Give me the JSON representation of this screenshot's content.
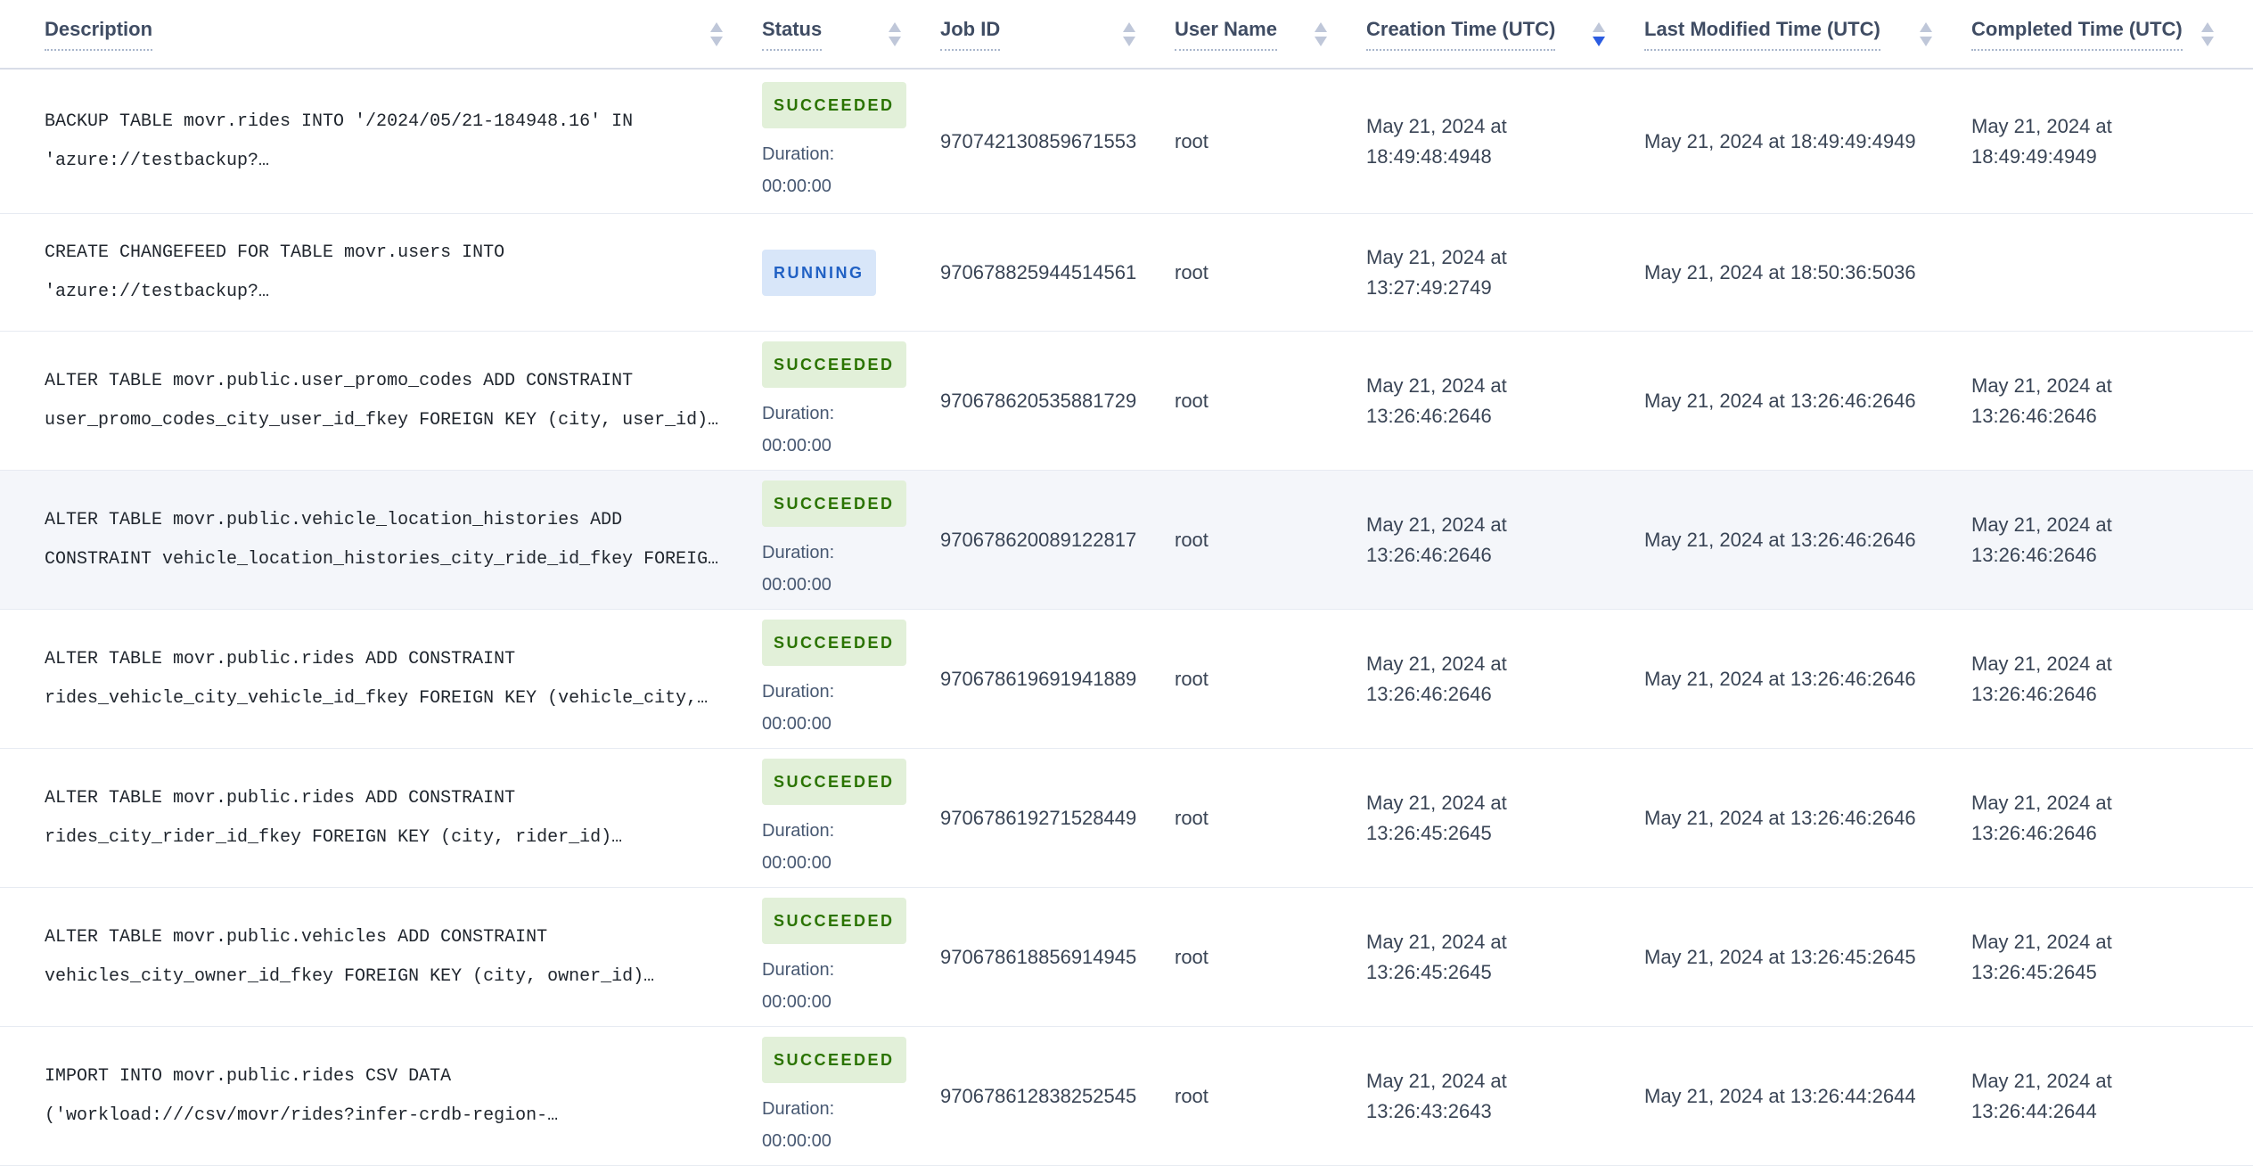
{
  "colors": {
    "succeeded_bg": "#e2f0d9",
    "succeeded_text": "#2a7300",
    "running_bg": "#d8e6f9",
    "running_text": "#2161c4",
    "sort_active": "#2b5ce1",
    "highlight_row_bg": "#f4f6fa"
  },
  "table": {
    "columns": [
      {
        "label": "Description",
        "sort": "none"
      },
      {
        "label": "Status",
        "sort": "none"
      },
      {
        "label": "Job ID",
        "sort": "none"
      },
      {
        "label": "User Name",
        "sort": "none"
      },
      {
        "label": "Creation Time (UTC)",
        "sort": "desc"
      },
      {
        "label": "Last Modified Time (UTC)",
        "sort": "none"
      },
      {
        "label": "Completed Time (UTC)",
        "sort": "none"
      }
    ],
    "rows": [
      {
        "description": "BACKUP TABLE movr.rides INTO '/2024/05/21-184948.16' IN\n'azure://testbackup?…",
        "status": "SUCCEEDED",
        "duration_label": "Duration:",
        "duration": "00:00:00",
        "job_id": "970742130859671553",
        "user_name": "root",
        "creation_time": "May 21, 2024 at 18:49:48:4948",
        "last_modified_time": "May 21, 2024 at 18:49:49:4949",
        "completed_time": "May 21, 2024 at 18:49:49:4949",
        "highlighted": false
      },
      {
        "description": "CREATE CHANGEFEED FOR TABLE movr.users INTO\n'azure://testbackup?…",
        "status": "RUNNING",
        "duration_label": "",
        "duration": "",
        "job_id": "970678825944514561",
        "user_name": "root",
        "creation_time": "May 21, 2024 at 13:27:49:2749",
        "last_modified_time": "May 21, 2024 at 18:50:36:5036",
        "completed_time": "",
        "highlighted": false
      },
      {
        "description": "ALTER TABLE movr.public.user_promo_codes ADD CONSTRAINT\nuser_promo_codes_city_user_id_fkey FOREIGN KEY (city, user_id)…",
        "status": "SUCCEEDED",
        "duration_label": "Duration:",
        "duration": "00:00:00",
        "job_id": "970678620535881729",
        "user_name": "root",
        "creation_time": "May 21, 2024 at 13:26:46:2646",
        "last_modified_time": "May 21, 2024 at 13:26:46:2646",
        "completed_time": "May 21, 2024 at 13:26:46:2646",
        "highlighted": false
      },
      {
        "description": "ALTER TABLE movr.public.vehicle_location_histories ADD\nCONSTRAINT vehicle_location_histories_city_ride_id_fkey FOREIG…",
        "status": "SUCCEEDED",
        "duration_label": "Duration:",
        "duration": "00:00:00",
        "job_id": "970678620089122817",
        "user_name": "root",
        "creation_time": "May 21, 2024 at 13:26:46:2646",
        "last_modified_time": "May 21, 2024 at 13:26:46:2646",
        "completed_time": "May 21, 2024 at 13:26:46:2646",
        "highlighted": true
      },
      {
        "description": "ALTER TABLE movr.public.rides ADD CONSTRAINT\nrides_vehicle_city_vehicle_id_fkey FOREIGN KEY (vehicle_city,…",
        "status": "SUCCEEDED",
        "duration_label": "Duration:",
        "duration": "00:00:00",
        "job_id": "970678619691941889",
        "user_name": "root",
        "creation_time": "May 21, 2024 at 13:26:46:2646",
        "last_modified_time": "May 21, 2024 at 13:26:46:2646",
        "completed_time": "May 21, 2024 at 13:26:46:2646",
        "highlighted": false
      },
      {
        "description": "ALTER TABLE movr.public.rides ADD CONSTRAINT\nrides_city_rider_id_fkey FOREIGN KEY (city, rider_id)…",
        "status": "SUCCEEDED",
        "duration_label": "Duration:",
        "duration": "00:00:00",
        "job_id": "970678619271528449",
        "user_name": "root",
        "creation_time": "May 21, 2024 at 13:26:45:2645",
        "last_modified_time": "May 21, 2024 at 13:26:46:2646",
        "completed_time": "May 21, 2024 at 13:26:46:2646",
        "highlighted": false
      },
      {
        "description": "ALTER TABLE movr.public.vehicles ADD CONSTRAINT\nvehicles_city_owner_id_fkey FOREIGN KEY (city, owner_id)…",
        "status": "SUCCEEDED",
        "duration_label": "Duration:",
        "duration": "00:00:00",
        "job_id": "970678618856914945",
        "user_name": "root",
        "creation_time": "May 21, 2024 at 13:26:45:2645",
        "last_modified_time": "May 21, 2024 at 13:26:45:2645",
        "completed_time": "May 21, 2024 at 13:26:45:2645",
        "highlighted": false
      },
      {
        "description": "IMPORT INTO movr.public.rides CSV DATA\n('workload:///csv/movr/rides?infer-crdb-region-…",
        "status": "SUCCEEDED",
        "duration_label": "Duration:",
        "duration": "00:00:00",
        "job_id": "970678612838252545",
        "user_name": "root",
        "creation_time": "May 21, 2024 at 13:26:43:2643",
        "last_modified_time": "May 21, 2024 at 13:26:44:2644",
        "completed_time": "May 21, 2024 at 13:26:44:2644",
        "highlighted": false
      }
    ]
  }
}
